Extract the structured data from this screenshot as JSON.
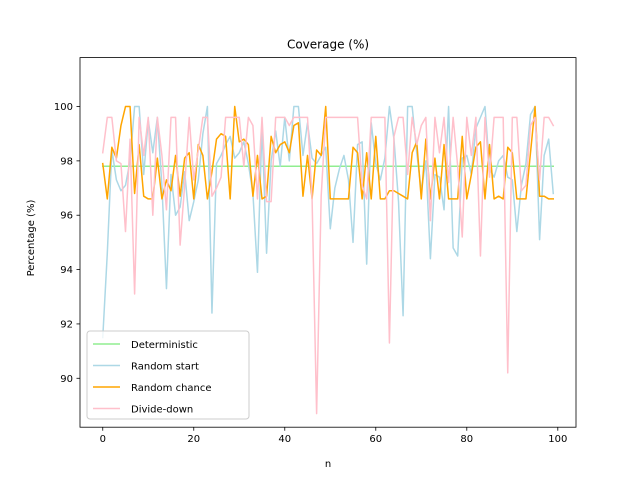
{
  "chart_data": {
    "type": "line",
    "title": "Coverage (%)",
    "xlabel": "n",
    "ylabel": "Percentage (%)",
    "xlim": [
      -5,
      104
    ],
    "ylim": [
      88.2,
      101.8
    ],
    "xticks": [
      0,
      20,
      40,
      60,
      80,
      100
    ],
    "yticks": [
      90,
      92,
      94,
      96,
      98,
      100
    ],
    "grid": false,
    "legend_position": "lower-left",
    "series": [
      {
        "name": "Deterministic",
        "color": "#90ee90",
        "x": [
          0,
          99
        ],
        "y": [
          97.8,
          97.8
        ]
      },
      {
        "name": "Random start",
        "color": "#add8e6",
        "x": [
          0,
          1,
          2,
          3,
          4,
          5,
          6,
          7,
          8,
          9,
          10,
          11,
          12,
          13,
          14,
          15,
          16,
          17,
          18,
          19,
          20,
          21,
          22,
          23,
          24,
          25,
          26,
          27,
          28,
          29,
          30,
          31,
          32,
          33,
          34,
          35,
          36,
          37,
          38,
          39,
          40,
          41,
          42,
          43,
          44,
          45,
          46,
          47,
          48,
          49,
          50,
          51,
          52,
          53,
          54,
          55,
          56,
          57,
          58,
          59,
          60,
          61,
          62,
          63,
          64,
          65,
          66,
          67,
          68,
          69,
          70,
          71,
          72,
          73,
          74,
          75,
          76,
          77,
          78,
          79,
          80,
          81,
          82,
          83,
          84,
          85,
          86,
          87,
          88,
          89,
          90,
          91,
          92,
          93,
          94,
          95,
          96,
          97,
          98,
          99
        ],
        "y": [
          91.5,
          94.6,
          98.4,
          97.3,
          96.9,
          97.1,
          98.0,
          100.0,
          100.0,
          97.5,
          99.5,
          98.3,
          99.6,
          97.1,
          93.3,
          97.5,
          96.0,
          96.3,
          97.6,
          95.8,
          96.5,
          97.3,
          99.0,
          100.0,
          92.4,
          97.9,
          98.2,
          98.6,
          98.9,
          98.1,
          98.3,
          98.7,
          97.9,
          96.8,
          93.9,
          99.3,
          94.6,
          98.0,
          99.1,
          97.8,
          99.6,
          98.0,
          100.0,
          100.0,
          98.2,
          99.4,
          98.1,
          97.9,
          98.2,
          98.5,
          95.5,
          97.0,
          97.7,
          98.2,
          97.3,
          95.0,
          98.6,
          98.7,
          94.2,
          99.4,
          97.9,
          97.3,
          98.1,
          100.0,
          98.8,
          96.5,
          92.3,
          100.0,
          100.0,
          98.3,
          96.9,
          98.0,
          94.4,
          97.5,
          97.4,
          96.2,
          100.0,
          94.8,
          94.5,
          98.1,
          98.2,
          97.5,
          99.2,
          99.6,
          100.0,
          97.7,
          97.4,
          98.0,
          98.2,
          97.4,
          97.3,
          95.4,
          97.1,
          97.9,
          99.7,
          100.0,
          95.1,
          98.2,
          98.8,
          96.8
        ]
      },
      {
        "name": "Random chance",
        "color": "#ffa500",
        "x": [
          0,
          1,
          2,
          3,
          4,
          5,
          6,
          7,
          8,
          9,
          10,
          11,
          12,
          13,
          14,
          15,
          16,
          17,
          18,
          19,
          20,
          21,
          22,
          23,
          24,
          25,
          26,
          27,
          28,
          29,
          30,
          31,
          32,
          33,
          34,
          35,
          36,
          37,
          38,
          39,
          40,
          41,
          42,
          43,
          44,
          45,
          46,
          47,
          48,
          49,
          50,
          51,
          52,
          53,
          54,
          55,
          56,
          57,
          58,
          59,
          60,
          61,
          62,
          63,
          64,
          65,
          66,
          67,
          68,
          69,
          70,
          71,
          72,
          73,
          74,
          75,
          76,
          77,
          78,
          79,
          80,
          81,
          82,
          83,
          84,
          85,
          86,
          87,
          88,
          89,
          90,
          91,
          92,
          93,
          94,
          95,
          96,
          97,
          98,
          99
        ],
        "y": [
          97.9,
          96.6,
          98.5,
          98.1,
          99.3,
          100.0,
          100.0,
          96.8,
          98.6,
          96.7,
          96.6,
          96.6,
          98.1,
          96.6,
          97.3,
          96.9,
          98.2,
          96.7,
          98.1,
          98.3,
          96.6,
          98.6,
          98.2,
          96.6,
          97.6,
          98.8,
          99.0,
          98.9,
          96.6,
          100.0,
          98.7,
          98.8,
          98.6,
          96.7,
          98.2,
          96.6,
          96.7,
          98.9,
          98.3,
          98.6,
          98.7,
          98.3,
          99.3,
          99.4,
          96.7,
          98.2,
          96.6,
          98.4,
          98.2,
          100.0,
          96.6,
          96.6,
          96.6,
          96.6,
          96.6,
          98.5,
          98.3,
          96.6,
          98.3,
          96.6,
          98.9,
          96.6,
          96.6,
          96.9,
          96.9,
          96.8,
          96.7,
          96.6,
          98.3,
          98.7,
          96.6,
          98.8,
          96.6,
          98.1,
          96.6,
          98.6,
          96.6,
          96.6,
          96.6,
          98.9,
          96.6,
          97.5,
          98.5,
          98.7,
          96.6,
          98.6,
          96.6,
          96.7,
          96.6,
          98.5,
          98.3,
          96.6,
          96.6,
          96.6,
          98.3,
          100.0,
          96.7,
          96.7,
          96.6,
          96.6
        ]
      },
      {
        "name": "Divide-down",
        "color": "#ffc0cb",
        "x": [
          0,
          1,
          2,
          3,
          4,
          5,
          6,
          7,
          8,
          9,
          10,
          11,
          12,
          13,
          14,
          15,
          16,
          17,
          18,
          19,
          20,
          21,
          22,
          23,
          24,
          25,
          26,
          27,
          28,
          29,
          30,
          31,
          32,
          33,
          34,
          35,
          36,
          37,
          38,
          39,
          40,
          41,
          42,
          43,
          44,
          45,
          46,
          47,
          48,
          49,
          50,
          51,
          52,
          53,
          54,
          55,
          56,
          57,
          58,
          59,
          60,
          61,
          62,
          63,
          64,
          65,
          66,
          67,
          68,
          69,
          70,
          71,
          72,
          73,
          74,
          75,
          76,
          77,
          78,
          79,
          80,
          81,
          82,
          83,
          84,
          85,
          86,
          87,
          88,
          89,
          90,
          91,
          92,
          93,
          94,
          95,
          96,
          97,
          98,
          99
        ],
        "y": [
          98.3,
          99.6,
          99.6,
          98.0,
          97.9,
          95.4,
          98.8,
          93.1,
          99.6,
          98.2,
          99.6,
          96.0,
          99.6,
          98.2,
          96.2,
          99.6,
          99.6,
          94.9,
          97.1,
          99.6,
          97.3,
          98.4,
          99.6,
          99.6,
          96.7,
          97.0,
          97.4,
          99.6,
          99.6,
          99.6,
          99.6,
          97.8,
          99.6,
          99.3,
          96.6,
          99.6,
          96.5,
          96.5,
          99.6,
          99.6,
          99.6,
          99.3,
          99.6,
          99.6,
          99.6,
          99.6,
          96.6,
          88.7,
          96.7,
          99.6,
          99.6,
          99.6,
          99.6,
          99.6,
          99.6,
          99.6,
          99.6,
          97.1,
          96.6,
          99.6,
          99.6,
          99.6,
          99.6,
          91.3,
          98.9,
          99.6,
          99.6,
          97.5,
          99.6,
          98.6,
          99.3,
          99.6,
          95.8,
          99.6,
          98.3,
          99.6,
          97.2,
          99.6,
          97.8,
          95.2,
          99.6,
          98.2,
          99.6,
          94.5,
          99.6,
          97.4,
          99.6,
          99.6,
          99.6,
          90.2,
          99.6,
          99.6,
          96.9,
          97.1,
          99.3,
          99.6,
          97.3,
          99.6,
          99.6,
          99.3
        ]
      }
    ]
  }
}
